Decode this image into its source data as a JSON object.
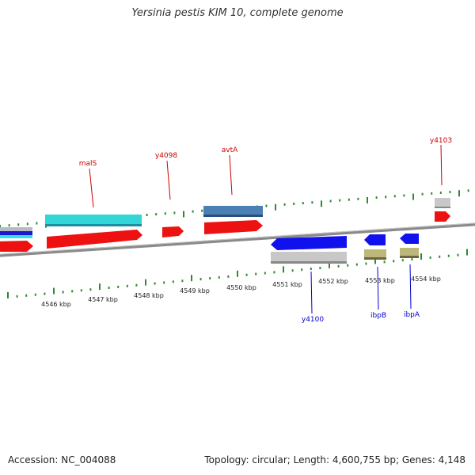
{
  "title": "Yersinia pestis KIM 10, complete genome",
  "footer": {
    "accession": "Accession: NC_004088",
    "summary": "Topology: circular; Length: 4,600,755 bp; Genes: 4,148"
  },
  "colors": {
    "backbone": "#7f7f7f",
    "tick": "#2e8b2e",
    "label_forward": "#cc0000",
    "label_reverse": "#0000cc"
  },
  "scale_labels": [
    "4546 kbp",
    "4547 kbp",
    "4548 kbp",
    "4549 kbp",
    "4550 kbp",
    "4551 kbp",
    "4552 kbp",
    "4553 kbp",
    "4554 kbp"
  ],
  "gene_labels": {
    "forward": [
      "malS",
      "y4098",
      "avtA",
      "y4103"
    ],
    "reverse": [
      "y4100",
      "ibpB",
      "ibpA"
    ]
  },
  "features": [
    {
      "color": "#b8b8c8"
    },
    {
      "color": "#1a1acc"
    },
    {
      "color": "#33e0ee"
    },
    {
      "color": "#ee1111"
    },
    {
      "color": "#33d6d6"
    },
    {
      "color": "#ee1111"
    },
    {
      "color": "#ee1111"
    },
    {
      "color": "#4a80b4"
    },
    {
      "color": "#ee1111"
    },
    {
      "color": "#c8c8c8"
    },
    {
      "color": "#ee1111"
    },
    {
      "color": "#1111ee"
    },
    {
      "color": "#c8c8c8"
    },
    {
      "color": "#1111ee"
    },
    {
      "color": "#bdb77a"
    },
    {
      "color": "#1111ee"
    },
    {
      "color": "#bdb77a"
    }
  ]
}
